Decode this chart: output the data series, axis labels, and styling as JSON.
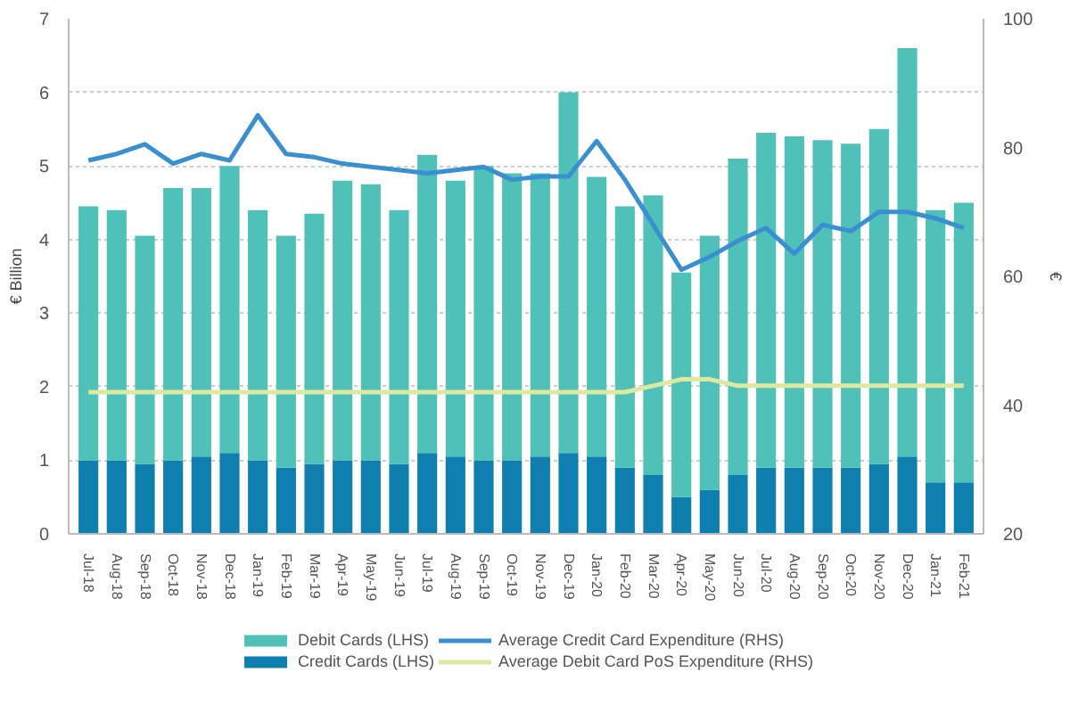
{
  "chart_data": {
    "type": "bar",
    "stacked": true,
    "ylabel": "€ Billion",
    "y2label": "€",
    "categories": [
      "Jul-18",
      "Aug-18",
      "Sep-18",
      "Oct-18",
      "Nov-18",
      "Dec-18",
      "Jan-19",
      "Feb-19",
      "Mar-19",
      "Apr-19",
      "May-19",
      "Jun-19",
      "Jul-19",
      "Aug-19",
      "Sep-19",
      "Oct-19",
      "Nov-19",
      "Dec-19",
      "Jan-20",
      "Feb-20",
      "Mar-20",
      "Apr-20",
      "May-20",
      "Jun-20",
      "Jul-20",
      "Aug-20",
      "Sep-20",
      "Oct-20",
      "Nov-20",
      "Dec-20",
      "Jan-21",
      "Feb-21"
    ],
    "series": [
      {
        "name": "Credit Cards (LHS)",
        "color": "#0f7fb0",
        "values": [
          1.0,
          1.0,
          0.95,
          1.0,
          1.05,
          1.1,
          1.0,
          0.9,
          0.95,
          1.0,
          1.0,
          0.95,
          1.1,
          1.05,
          1.0,
          1.0,
          1.05,
          1.1,
          1.05,
          0.9,
          0.8,
          0.5,
          0.6,
          0.8,
          0.9,
          0.9,
          0.9,
          0.9,
          0.95,
          1.05,
          0.7,
          0.7
        ]
      },
      {
        "name": "Debit Cards (LHS)",
        "color": "#4fc1b8",
        "values": [
          3.45,
          3.4,
          3.1,
          3.7,
          3.65,
          3.9,
          3.4,
          3.15,
          3.4,
          3.8,
          3.75,
          3.45,
          4.05,
          3.75,
          4.0,
          3.9,
          3.85,
          4.9,
          3.8,
          3.55,
          3.8,
          3.05,
          3.45,
          4.3,
          4.55,
          4.5,
          4.45,
          4.4,
          4.55,
          5.55,
          3.7,
          3.8
        ]
      },
      {
        "name": "Average Credit Card Expenditure (RHS)",
        "type": "line",
        "axis": "y2",
        "color": "#3a8fd0",
        "values": [
          78,
          79,
          80.5,
          77.5,
          79,
          78,
          85,
          79,
          78.5,
          77.5,
          77,
          76.5,
          76,
          76.5,
          77,
          75,
          75.5,
          75.5,
          81,
          75,
          68,
          61,
          63,
          65.5,
          67.5,
          63.5,
          68,
          67,
          70,
          70,
          69,
          67.5
        ]
      },
      {
        "name": "Average Debit Card PoS Expenditure (RHS)",
        "type": "line",
        "axis": "y2",
        "color": "#dde8a0",
        "values": [
          42,
          42,
          42,
          42,
          42,
          42,
          42,
          42,
          42,
          42,
          42,
          42,
          42,
          42,
          42,
          42,
          42,
          42,
          42,
          42,
          43,
          44,
          44,
          43,
          43,
          43,
          43,
          43,
          43,
          43,
          43,
          43
        ]
      }
    ],
    "ylim": [
      0,
      7
    ],
    "yticks": [
      0,
      1,
      2,
      3,
      4,
      5,
      6,
      7
    ],
    "y2lim": [
      20,
      100
    ],
    "y2ticks": [
      20,
      40,
      60,
      80,
      100
    ],
    "grid": "y",
    "legend": "bottom"
  }
}
